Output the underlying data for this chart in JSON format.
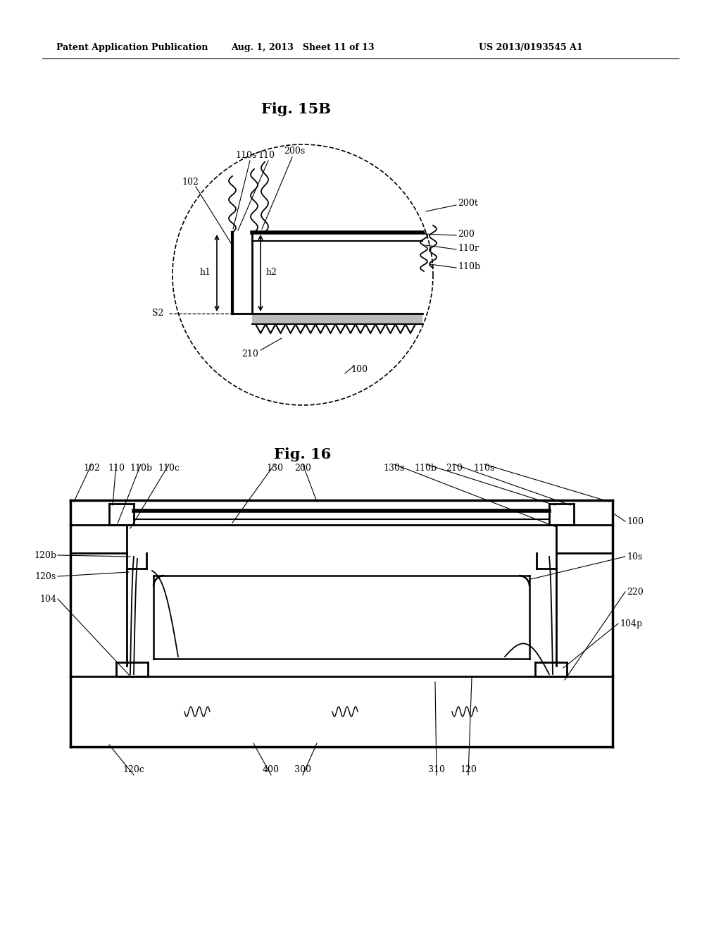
{
  "header_left": "Patent Application Publication",
  "header_mid": "Aug. 1, 2013   Sheet 11 of 13",
  "header_right": "US 2013/0193545 A1",
  "fig15b_title": "Fig. 15B",
  "fig16_title": "Fig. 16",
  "bg_color": "#ffffff",
  "lc": "#000000"
}
